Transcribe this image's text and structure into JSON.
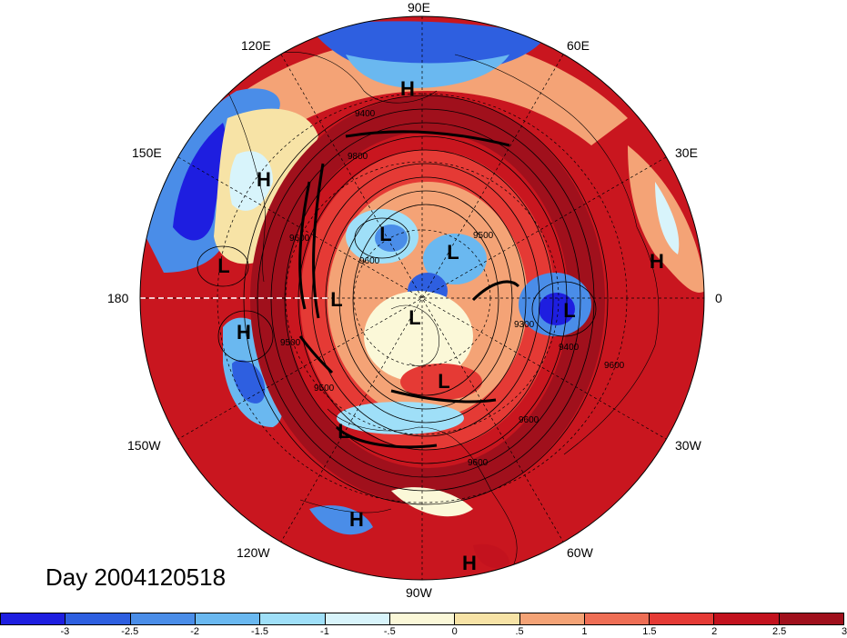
{
  "title": "Day 2004120518",
  "longitude_labels": [
    {
      "text": "90E",
      "pos": "top"
    },
    {
      "text": "60E",
      "pos": "top-right-upper"
    },
    {
      "text": "30E",
      "pos": "right-upper"
    },
    {
      "text": "0",
      "pos": "right"
    },
    {
      "text": "30W",
      "pos": "right-lower"
    },
    {
      "text": "60W",
      "pos": "bottom-right-lower"
    },
    {
      "text": "90W",
      "pos": "bottom"
    },
    {
      "text": "120W",
      "pos": "bottom-left-lower"
    },
    {
      "text": "150W",
      "pos": "left-lower"
    },
    {
      "text": "180",
      "pos": "left"
    },
    {
      "text": "150E",
      "pos": "left-upper"
    },
    {
      "text": "120E",
      "pos": "top-left-upper"
    }
  ],
  "pressure_centers": [
    {
      "type": "H"
    },
    {
      "type": "H"
    },
    {
      "type": "L"
    },
    {
      "type": "L"
    },
    {
      "type": "L"
    },
    {
      "type": "H"
    },
    {
      "type": "L"
    },
    {
      "type": "L"
    },
    {
      "type": "L"
    },
    {
      "type": "L"
    },
    {
      "type": "L"
    },
    {
      "type": "H"
    },
    {
      "type": "H"
    },
    {
      "type": "H"
    }
  ],
  "contour_labels": [
    "9600",
    "9500",
    "9600",
    "9500",
    "9400",
    "9300",
    "9600",
    "9500",
    "9600",
    "9600",
    "9800",
    "9400"
  ],
  "colorbar": {
    "colors": [
      "#1e1ee0",
      "#2e5fe0",
      "#4a8de8",
      "#6ab8f0",
      "#9fdff8",
      "#d8f4fb",
      "#fbf8d8",
      "#f7e3a6",
      "#f4a376",
      "#ee6e55",
      "#e53a35",
      "#c3121e",
      "#a0101c"
    ],
    "ticks": [
      "-3",
      "-2.5",
      "-2",
      "-1.5",
      "-1",
      "-.5",
      "0",
      ".5",
      "1",
      "1.5",
      "2",
      "2.5",
      "3"
    ]
  }
}
